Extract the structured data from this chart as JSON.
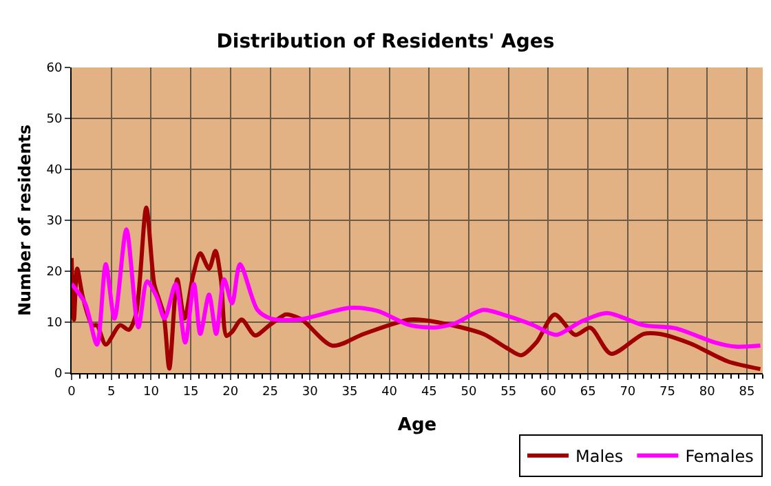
{
  "chart_data": {
    "type": "line",
    "title": "Distribution of Residents' Ages",
    "xlabel": "Age",
    "ylabel": "Number of residents",
    "xlim": [
      0,
      87
    ],
    "xticks": [
      0,
      5,
      10,
      15,
      20,
      25,
      30,
      35,
      40,
      45,
      50,
      55,
      60,
      65,
      70,
      75,
      80,
      85
    ],
    "ylim": [
      0,
      60
    ],
    "yticks": [
      0,
      10,
      20,
      30,
      40,
      50,
      60
    ],
    "grid": true,
    "legend": "bottom right",
    "marker": "none",
    "line_style": "solid",
    "series": [
      {
        "name": "Males",
        "color": "#a00000",
        "x": [
          0,
          0.3,
          0.7,
          1.4,
          2.6,
          3.2,
          4.3,
          6.1,
          7.2,
          8.1,
          9.4,
          10.4,
          11,
          11.6,
          12.3,
          13.3,
          14.2,
          15.3,
          16.2,
          17.3,
          18.1,
          18.8,
          19.5,
          20.2,
          21.4,
          23.1,
          24.9,
          26.9,
          27.3,
          29,
          32.8,
          36.8,
          42.6,
          46,
          51.8,
          54.7,
          56.6,
          58.5,
          60.8,
          63.4,
          65.3,
          67.9,
          72,
          74,
          77.9,
          82.6,
          86.7
        ],
        "values": [
          22.6,
          10.5,
          20.5,
          15,
          9.4,
          9.4,
          5.6,
          9.4,
          8.5,
          11.5,
          32.5,
          17.5,
          14.5,
          11.5,
          0.9,
          18.4,
          10.7,
          19.2,
          23.5,
          20.5,
          24,
          18.4,
          7.3,
          8.1,
          10.5,
          7.4,
          9.4,
          11.5,
          11.5,
          10.5,
          5.4,
          7.7,
          10.5,
          10,
          7.7,
          5,
          3.5,
          6,
          11.5,
          7.5,
          8.9,
          3.8,
          7.7,
          7.7,
          5.8,
          2.3,
          0.8
        ]
      },
      {
        "name": "Females",
        "color": "#ff00ff",
        "x": [
          0,
          1.7,
          3.2,
          4.3,
          5.4,
          6.9,
          8.4,
          9.5,
          10.7,
          11.7,
          13.1,
          14.3,
          15.4,
          16.2,
          17.3,
          18.2,
          19.2,
          20.2,
          21.2,
          23.4,
          25.1,
          28.6,
          35,
          38.5,
          42.6,
          46,
          48.3,
          51.8,
          54.7,
          58,
          61,
          64,
          67.4,
          72,
          76,
          81,
          83.6,
          86.7
        ],
        "values": [
          17.5,
          13.7,
          5.6,
          21.4,
          10.7,
          28.2,
          9,
          18,
          15,
          10.7,
          17.5,
          6,
          17.5,
          7.7,
          15.4,
          7.7,
          18.4,
          13.7,
          21.4,
          12.4,
          10.7,
          10.5,
          12.8,
          12.2,
          9.4,
          9,
          9.8,
          12.4,
          11.3,
          9.5,
          7.5,
          10,
          11.8,
          9.4,
          8.8,
          6,
          5.2,
          5.4
        ]
      }
    ]
  }
}
